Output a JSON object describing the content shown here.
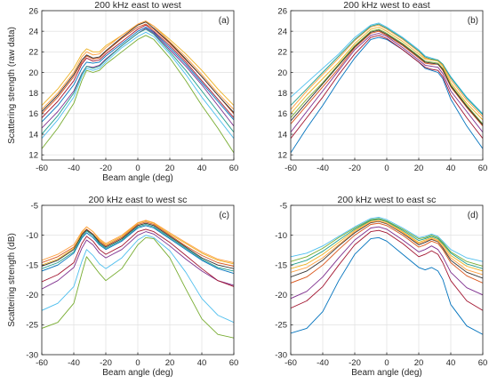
{
  "chart_data": [
    {
      "type": "line",
      "panel_label": "(a)",
      "title": "200 kHz east to west",
      "xlabel": "Beam angle (deg)",
      "ylabel": "Scattering strength (raw data)",
      "xlim": [
        -60,
        60
      ],
      "ylim": [
        11.5,
        26
      ],
      "xticks": [
        -60,
        -40,
        -20,
        0,
        20,
        40,
        60
      ],
      "yticks": [
        12,
        14,
        16,
        18,
        20,
        22,
        24,
        26
      ],
      "grid": true,
      "x": [
        -60,
        -50,
        -40,
        -35,
        -32,
        -28,
        -24,
        -20,
        -10,
        0,
        5,
        10,
        20,
        30,
        40,
        50,
        60
      ],
      "series": [
        {
          "color": "#0072BD",
          "values": [
            15.2,
            16.8,
            18.8,
            20.4,
            21.0,
            20.9,
            21.0,
            21.6,
            22.8,
            24.0,
            24.4,
            23.9,
            22.4,
            20.8,
            19.0,
            17.2,
            15.4
          ]
        },
        {
          "color": "#D95319",
          "values": [
            16.0,
            17.6,
            19.6,
            21.0,
            21.6,
            21.3,
            21.4,
            22.0,
            23.3,
            24.4,
            24.7,
            24.2,
            22.8,
            21.2,
            19.6,
            17.8,
            16.0
          ]
        },
        {
          "color": "#EDB120",
          "values": [
            16.8,
            18.4,
            20.4,
            21.8,
            22.3,
            22.0,
            22.0,
            22.6,
            23.6,
            24.6,
            24.9,
            24.5,
            23.2,
            21.8,
            20.2,
            18.4,
            16.8
          ]
        },
        {
          "color": "#7E2F8E",
          "values": [
            14.6,
            16.2,
            18.2,
            19.9,
            20.6,
            20.5,
            20.7,
            21.3,
            22.6,
            23.8,
            24.3,
            23.8,
            22.2,
            20.6,
            18.8,
            16.8,
            14.8
          ]
        },
        {
          "color": "#77AC30",
          "values": [
            12.6,
            14.6,
            17.0,
            19.2,
            20.2,
            20.0,
            20.2,
            20.8,
            22.0,
            23.2,
            23.6,
            23.2,
            21.4,
            19.2,
            16.8,
            14.6,
            12.2
          ]
        },
        {
          "color": "#4DBEEE",
          "values": [
            13.6,
            15.4,
            17.6,
            19.6,
            20.4,
            20.2,
            20.4,
            21.0,
            22.4,
            23.5,
            23.9,
            23.5,
            21.8,
            19.8,
            17.6,
            15.6,
            13.6
          ]
        },
        {
          "color": "#A2142F",
          "values": [
            15.6,
            17.2,
            19.2,
            20.8,
            21.4,
            21.1,
            21.2,
            21.8,
            23.0,
            24.2,
            24.6,
            24.0,
            22.6,
            21.0,
            19.2,
            17.4,
            15.6
          ]
        },
        {
          "color": "#333333",
          "values": [
            16.2,
            17.8,
            19.8,
            21.2,
            21.7,
            21.4,
            21.5,
            22.1,
            23.4,
            24.6,
            24.9,
            24.3,
            22.9,
            21.3,
            19.6,
            17.8,
            16.1
          ]
        },
        {
          "color": "#FF9F40",
          "values": [
            16.4,
            18.0,
            20.0,
            21.5,
            22.0,
            21.7,
            21.8,
            22.4,
            23.6,
            24.7,
            25.0,
            24.5,
            23.0,
            21.5,
            19.8,
            18.0,
            16.4
          ]
        },
        {
          "color": "#1F9E89",
          "values": [
            14.0,
            15.8,
            18.0,
            19.8,
            20.6,
            20.4,
            20.6,
            21.2,
            22.6,
            23.8,
            24.2,
            23.7,
            22.0,
            20.2,
            18.2,
            16.2,
            14.2
          ]
        }
      ]
    },
    {
      "type": "line",
      "panel_label": "(b)",
      "title": "200 kHz west to east",
      "xlabel": "",
      "ylabel": "",
      "xlim": [
        -60,
        60
      ],
      "ylim": [
        11.5,
        26
      ],
      "xticks": [
        -60,
        -40,
        -20,
        0,
        20,
        40,
        60
      ],
      "yticks": [
        12,
        14,
        16,
        18,
        20,
        22,
        24,
        26
      ],
      "grid": true,
      "x": [
        -60,
        -50,
        -40,
        -30,
        -20,
        -10,
        -5,
        0,
        10,
        20,
        24,
        28,
        32,
        35,
        40,
        50,
        60
      ],
      "series": [
        {
          "color": "#0072BD",
          "values": [
            12.2,
            14.6,
            16.8,
            19.2,
            21.4,
            23.2,
            23.4,
            23.2,
            22.2,
            21.0,
            20.4,
            20.2,
            20.0,
            19.4,
            17.4,
            14.8,
            12.6
          ]
        },
        {
          "color": "#D95319",
          "values": [
            15.0,
            16.8,
            18.6,
            20.4,
            22.4,
            23.8,
            24.0,
            23.6,
            22.6,
            21.4,
            20.9,
            20.8,
            20.8,
            20.2,
            18.6,
            16.6,
            14.8
          ]
        },
        {
          "color": "#EDB120",
          "values": [
            16.0,
            17.8,
            19.4,
            21.0,
            22.8,
            24.2,
            24.4,
            24.0,
            23.0,
            21.8,
            21.3,
            21.2,
            21.1,
            20.6,
            19.0,
            17.0,
            15.4
          ]
        },
        {
          "color": "#7E2F8E",
          "values": [
            14.2,
            16.2,
            18.2,
            20.2,
            22.2,
            23.6,
            23.8,
            23.5,
            22.4,
            21.2,
            20.7,
            20.6,
            20.5,
            19.9,
            18.2,
            16.2,
            14.2
          ]
        },
        {
          "color": "#77AC30",
          "values": [
            15.6,
            17.4,
            19.0,
            20.8,
            22.6,
            24.0,
            24.2,
            23.8,
            22.8,
            21.6,
            21.1,
            21.0,
            20.9,
            20.4,
            18.8,
            16.8,
            15.0
          ]
        },
        {
          "color": "#4DBEEE",
          "values": [
            17.6,
            19.0,
            20.4,
            21.8,
            23.4,
            24.6,
            24.8,
            24.4,
            23.4,
            22.2,
            21.6,
            21.4,
            21.2,
            20.8,
            19.6,
            17.6,
            16.0
          ]
        },
        {
          "color": "#A2142F",
          "values": [
            13.6,
            15.6,
            17.6,
            19.8,
            21.8,
            23.4,
            23.6,
            23.3,
            22.2,
            21.0,
            20.5,
            20.3,
            20.2,
            19.6,
            17.8,
            15.6,
            13.6
          ]
        },
        {
          "color": "#333333",
          "values": [
            15.3,
            17.1,
            18.9,
            20.7,
            22.5,
            23.9,
            24.1,
            23.7,
            22.7,
            21.5,
            21.0,
            20.9,
            20.8,
            20.3,
            18.7,
            16.7,
            14.9
          ]
        },
        {
          "color": "#FF9F40",
          "values": [
            16.4,
            18.2,
            19.8,
            21.4,
            23.1,
            24.4,
            24.6,
            24.2,
            23.2,
            22.0,
            21.4,
            21.3,
            21.2,
            20.7,
            19.3,
            17.3,
            15.7
          ]
        },
        {
          "color": "#1F9E89",
          "values": [
            16.8,
            18.4,
            20.0,
            21.6,
            23.2,
            24.5,
            24.7,
            24.3,
            23.3,
            22.1,
            21.5,
            21.3,
            21.2,
            20.8,
            19.5,
            17.5,
            15.9
          ]
        }
      ]
    },
    {
      "type": "line",
      "panel_label": "(c)",
      "title": "200 kHz east to west sc",
      "xlabel": "Beam angle (deg)",
      "ylabel": "Scattering strength (dB)",
      "xlim": [
        -60,
        60
      ],
      "ylim": [
        -30,
        -5
      ],
      "xticks": [
        -60,
        -40,
        -20,
        0,
        20,
        40,
        60
      ],
      "yticks": [
        -30,
        -25,
        -20,
        -15,
        -10,
        -5
      ],
      "grid": true,
      "x": [
        -60,
        -50,
        -40,
        -35,
        -32,
        -28,
        -24,
        -20,
        -10,
        0,
        5,
        10,
        20,
        30,
        40,
        50,
        60
      ],
      "series": [
        {
          "color": "#0072BD",
          "values": [
            -16.0,
            -15.0,
            -13.0,
            -10.5,
            -9.6,
            -10.4,
            -11.6,
            -12.4,
            -11.0,
            -8.8,
            -8.4,
            -8.8,
            -10.6,
            -12.4,
            -14.2,
            -15.6,
            -16.4
          ]
        },
        {
          "color": "#D95319",
          "values": [
            -14.6,
            -13.6,
            -12.0,
            -9.8,
            -9.0,
            -9.8,
            -11.0,
            -11.8,
            -10.4,
            -8.2,
            -7.8,
            -8.2,
            -10.0,
            -11.8,
            -13.4,
            -14.6,
            -15.2
          ]
        },
        {
          "color": "#EDB120",
          "values": [
            -15.0,
            -14.0,
            -12.2,
            -9.6,
            -8.6,
            -9.4,
            -10.8,
            -11.6,
            -10.2,
            -8.0,
            -7.6,
            -8.0,
            -9.8,
            -11.4,
            -13.0,
            -14.2,
            -14.8
          ]
        },
        {
          "color": "#7E2F8E",
          "values": [
            -19.0,
            -17.6,
            -15.4,
            -12.2,
            -10.8,
            -11.6,
            -13.0,
            -13.8,
            -12.4,
            -10.0,
            -9.4,
            -9.8,
            -11.8,
            -14.0,
            -16.0,
            -17.6,
            -18.4
          ]
        },
        {
          "color": "#77AC30",
          "values": [
            -25.6,
            -24.6,
            -21.4,
            -16.4,
            -13.6,
            -15.0,
            -16.4,
            -17.6,
            -15.6,
            -11.6,
            -10.4,
            -10.6,
            -13.8,
            -19.0,
            -24.0,
            -26.6,
            -27.2
          ]
        },
        {
          "color": "#4DBEEE",
          "values": [
            -22.6,
            -21.4,
            -18.6,
            -14.4,
            -12.4,
            -13.4,
            -14.8,
            -15.6,
            -13.8,
            -10.8,
            -10.0,
            -10.4,
            -12.6,
            -16.2,
            -20.6,
            -23.4,
            -24.6
          ]
        },
        {
          "color": "#A2142F",
          "values": [
            -17.8,
            -16.6,
            -14.6,
            -11.4,
            -10.2,
            -11.0,
            -12.4,
            -13.2,
            -11.8,
            -9.4,
            -9.0,
            -9.4,
            -11.2,
            -13.4,
            -15.6,
            -17.6,
            -18.6
          ]
        },
        {
          "color": "#333333",
          "values": [
            -15.2,
            -14.2,
            -12.4,
            -10.0,
            -9.1,
            -9.9,
            -11.2,
            -12.0,
            -10.6,
            -8.4,
            -8.0,
            -8.4,
            -10.2,
            -12.0,
            -13.8,
            -15.0,
            -15.6
          ]
        },
        {
          "color": "#FF9F40",
          "values": [
            -14.2,
            -13.2,
            -11.6,
            -9.4,
            -8.6,
            -9.4,
            -10.6,
            -11.4,
            -10.0,
            -7.9,
            -7.5,
            -7.9,
            -9.6,
            -11.2,
            -12.8,
            -14.0,
            -14.6
          ]
        },
        {
          "color": "#1F9E89",
          "values": [
            -15.6,
            -14.6,
            -12.8,
            -10.3,
            -9.3,
            -10.1,
            -11.4,
            -12.2,
            -10.8,
            -8.6,
            -8.2,
            -8.6,
            -10.4,
            -12.2,
            -14.0,
            -15.4,
            -16.0
          ]
        }
      ]
    },
    {
      "type": "line",
      "panel_label": "(d)",
      "title": "200 kHz west to east sc",
      "xlabel": "Beam angle (deg)",
      "ylabel": "",
      "xlim": [
        -60,
        60
      ],
      "ylim": [
        -30,
        -5
      ],
      "xticks": [
        -60,
        -40,
        -20,
        0,
        20,
        40,
        60
      ],
      "yticks": [
        -30,
        -25,
        -20,
        -15,
        -10,
        -5
      ],
      "grid": true,
      "x": [
        -60,
        -50,
        -40,
        -30,
        -20,
        -10,
        -5,
        0,
        10,
        20,
        24,
        28,
        32,
        35,
        40,
        50,
        60
      ],
      "series": [
        {
          "color": "#0072BD",
          "values": [
            -26.4,
            -25.6,
            -22.8,
            -17.6,
            -13.2,
            -10.6,
            -10.4,
            -11.0,
            -13.2,
            -15.4,
            -15.8,
            -15.4,
            -16.0,
            -17.4,
            -21.6,
            -25.2,
            -26.6
          ]
        },
        {
          "color": "#D95319",
          "values": [
            -18.0,
            -17.0,
            -15.0,
            -12.4,
            -10.0,
            -8.2,
            -8.0,
            -8.4,
            -10.0,
            -12.0,
            -11.6,
            -11.0,
            -11.4,
            -12.4,
            -14.6,
            -16.8,
            -18.0
          ]
        },
        {
          "color": "#EDB120",
          "values": [
            -15.6,
            -14.8,
            -13.2,
            -11.2,
            -9.2,
            -7.6,
            -7.4,
            -7.8,
            -9.4,
            -11.2,
            -10.8,
            -10.4,
            -10.8,
            -11.6,
            -13.4,
            -15.2,
            -16.0
          ]
        },
        {
          "color": "#7E2F8E",
          "values": [
            -20.6,
            -19.4,
            -17.0,
            -13.8,
            -10.8,
            -8.8,
            -8.6,
            -9.0,
            -10.8,
            -12.8,
            -12.4,
            -11.8,
            -12.4,
            -13.6,
            -16.2,
            -18.8,
            -20.0
          ]
        },
        {
          "color": "#77AC30",
          "values": [
            -14.4,
            -13.6,
            -12.2,
            -10.4,
            -8.8,
            -7.4,
            -7.2,
            -7.6,
            -9.0,
            -10.6,
            -10.4,
            -10.0,
            -10.4,
            -11.2,
            -12.8,
            -14.4,
            -15.2
          ]
        },
        {
          "color": "#4DBEEE",
          "values": [
            -13.6,
            -13.0,
            -11.8,
            -10.2,
            -8.6,
            -7.2,
            -7.0,
            -7.4,
            -8.8,
            -10.4,
            -10.2,
            -9.8,
            -10.2,
            -11.0,
            -12.4,
            -13.8,
            -14.4
          ]
        },
        {
          "color": "#A2142F",
          "values": [
            -22.2,
            -21.0,
            -18.6,
            -15.0,
            -11.6,
            -9.4,
            -9.2,
            -9.6,
            -11.4,
            -13.6,
            -13.2,
            -12.6,
            -13.2,
            -14.6,
            -17.6,
            -21.0,
            -22.6
          ]
        },
        {
          "color": "#333333",
          "values": [
            -17.0,
            -16.0,
            -14.2,
            -11.8,
            -9.6,
            -7.9,
            -7.7,
            -8.1,
            -9.7,
            -11.6,
            -11.2,
            -10.7,
            -11.1,
            -12.1,
            -14.2,
            -16.2,
            -17.2
          ]
        },
        {
          "color": "#FF9F40",
          "values": [
            -16.2,
            -15.4,
            -13.8,
            -11.6,
            -9.4,
            -7.8,
            -7.6,
            -8.0,
            -9.6,
            -11.4,
            -11.0,
            -10.6,
            -11.0,
            -11.9,
            -13.8,
            -15.8,
            -16.6
          ]
        },
        {
          "color": "#1F9E89",
          "values": [
            -15.0,
            -14.2,
            -12.7,
            -10.8,
            -9.0,
            -7.5,
            -7.3,
            -7.7,
            -9.2,
            -10.9,
            -10.6,
            -10.2,
            -10.6,
            -11.4,
            -13.0,
            -14.8,
            -15.6
          ]
        }
      ]
    }
  ]
}
